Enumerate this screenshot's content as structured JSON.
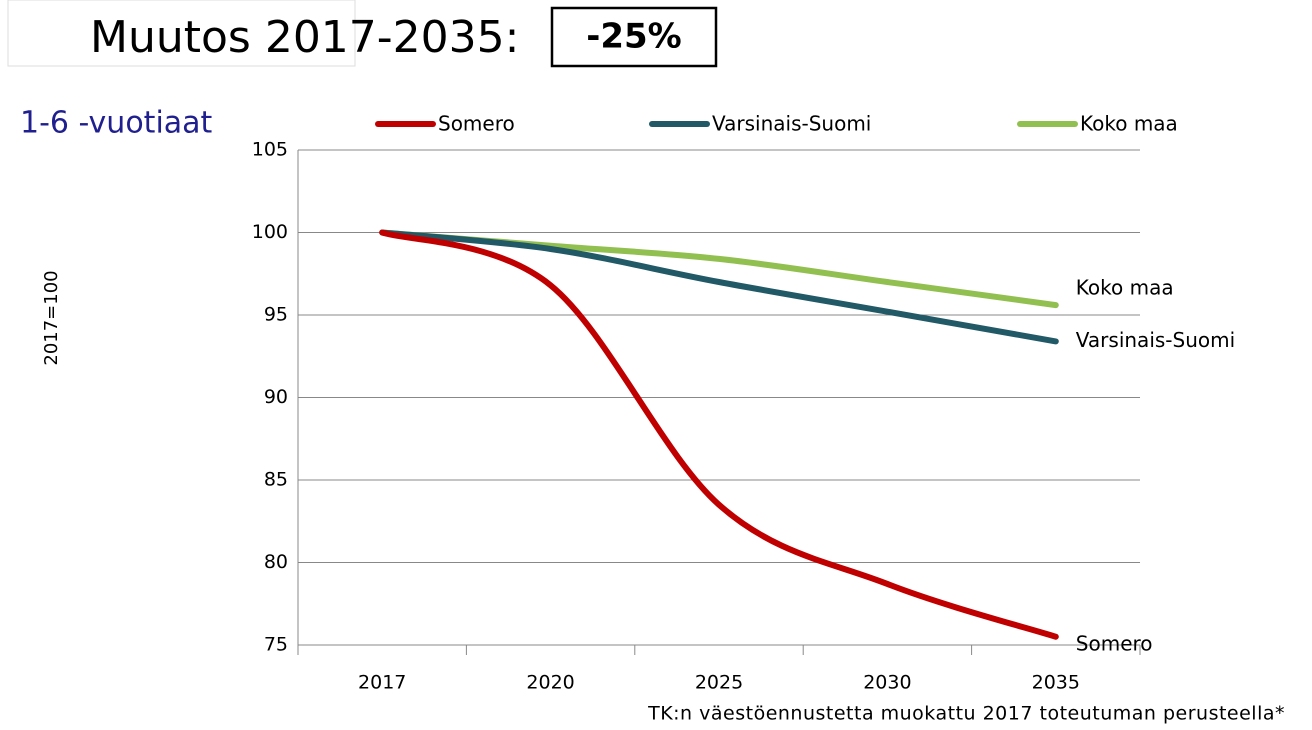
{
  "chart_data": {
    "type": "line",
    "title": "Muutos 2017-2035:",
    "change_label": "-25%",
    "subtitle": "1-6 -vuotiaat",
    "y_axis_label": "2017=100",
    "footnote": "TK:n väestöennustetta muokattu 2017 toteutuman perusteella*",
    "categories": [
      "2017",
      "2020",
      "2025",
      "2030",
      "2035"
    ],
    "series": [
      {
        "name": "Somero",
        "color": "#c00000",
        "values": [
          100,
          96.8,
          83.5,
          78.7,
          75.5
        ]
      },
      {
        "name": "Varsinais-Suomi",
        "color": "#215967",
        "values": [
          100,
          99.0,
          97.0,
          95.2,
          93.4
        ]
      },
      {
        "name": "Koko maa",
        "color": "#92c050",
        "values": [
          100,
          99.2,
          98.4,
          97.0,
          95.6
        ]
      }
    ],
    "ylim": [
      75,
      105
    ],
    "yticks": [
      75,
      80,
      85,
      90,
      95,
      100,
      105
    ],
    "grid": true
  }
}
